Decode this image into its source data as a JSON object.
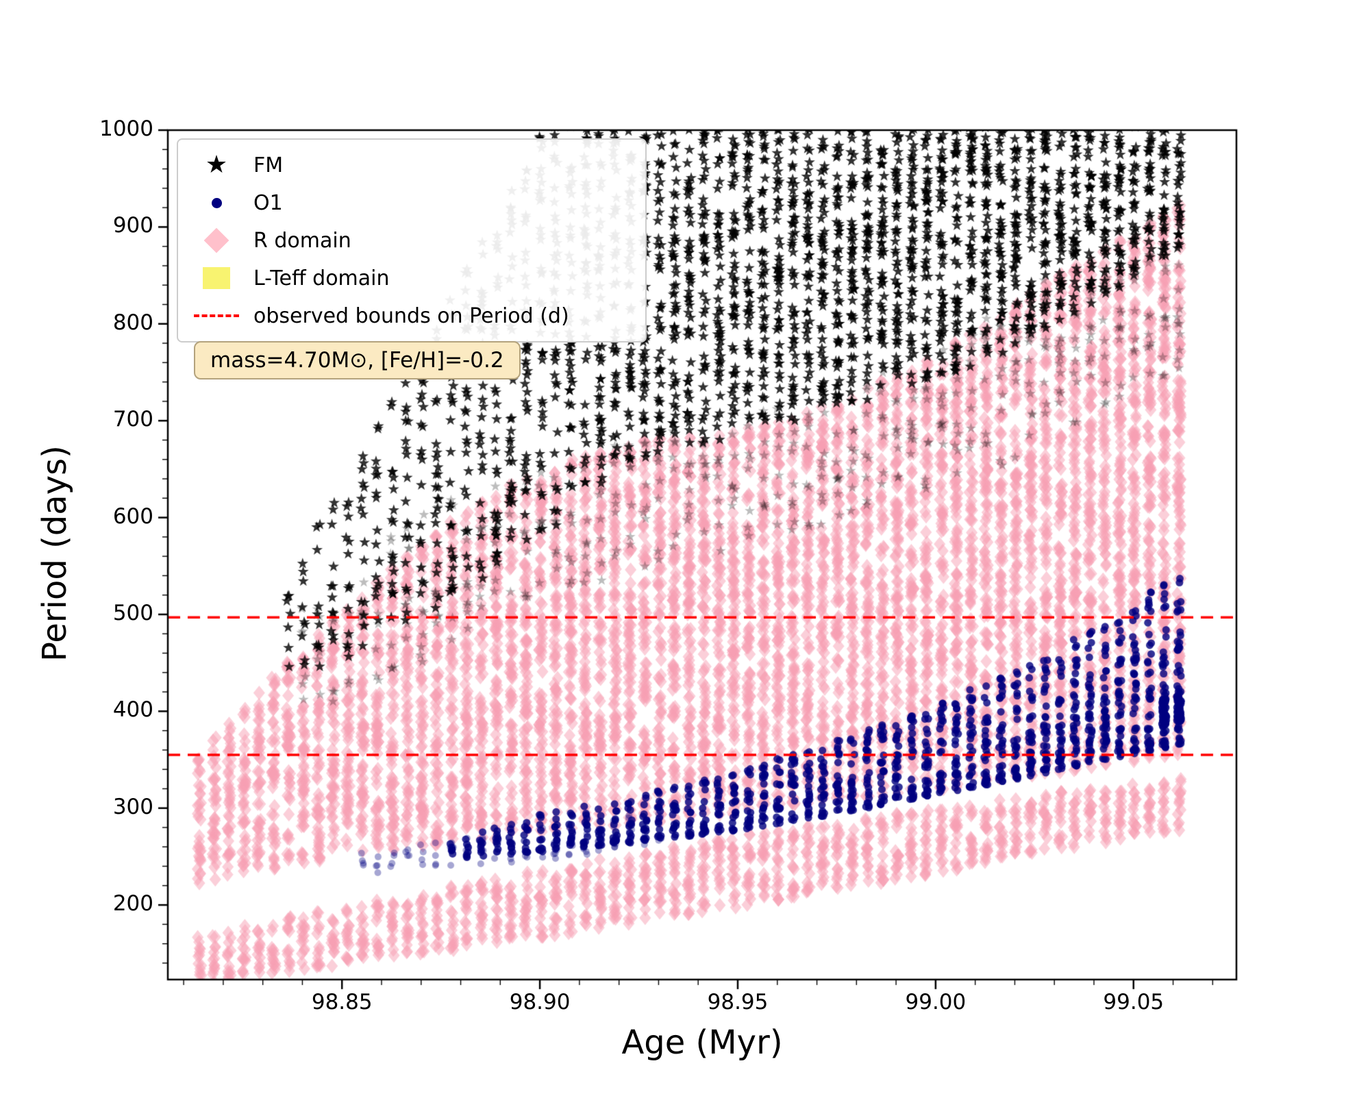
{
  "chart_data": {
    "type": "scatter",
    "title": "",
    "xlabel": "Age (Myr)",
    "ylabel": "Period (days)",
    "xlim": [
      98.806,
      99.076
    ],
    "ylim": [
      123,
      1000
    ],
    "xticks": [
      {
        "v": 98.85,
        "label": "98.85"
      },
      {
        "v": 98.9,
        "label": "98.90"
      },
      {
        "v": 98.95,
        "label": "98.95"
      },
      {
        "v": 99.0,
        "label": "99.00"
      },
      {
        "v": 99.05,
        "label": "99.05"
      }
    ],
    "yticks": [
      {
        "v": 200,
        "label": "200"
      },
      {
        "v": 300,
        "label": "300"
      },
      {
        "v": 400,
        "label": "400"
      },
      {
        "v": 500,
        "label": "500"
      },
      {
        "v": 600,
        "label": "600"
      },
      {
        "v": 700,
        "label": "700"
      },
      {
        "v": 800,
        "label": "800"
      },
      {
        "v": 900,
        "label": "900"
      },
      {
        "v": 1000,
        "label": "1000"
      }
    ],
    "x_minor_step": 0.01,
    "y_minor_step": 20,
    "grid": false,
    "column_step": 0.00375,
    "column_jitter": 0.0005,
    "x_start": 98.814,
    "x_end": 99.0645,
    "hlines": [
      {
        "y": 497,
        "color": "#ff0000",
        "style": "dashed",
        "width": 3.5
      },
      {
        "y": 355,
        "color": "#ff0000",
        "style": "dashed",
        "width": 3.5
      }
    ],
    "annotation": {
      "text": "mass=4.70M⊙, [Fe/H]=-0.2",
      "facecolor": "#fbeac2",
      "edgecolor": "#b3a27c"
    },
    "legend": {
      "position": "upper-left",
      "entries": [
        {
          "label": "FM",
          "marker": "star",
          "color": "#000000"
        },
        {
          "label": "O1",
          "marker": "circle",
          "color": "#000080"
        },
        {
          "label": "R domain",
          "marker": "diamond",
          "color": "#ffc0cb"
        },
        {
          "label": "L-Teff domain",
          "marker": "square",
          "color": "#f8f370"
        },
        {
          "label": "observed bounds on Period (d)",
          "marker": "dashed-line",
          "color": "#ff0000"
        }
      ]
    },
    "series": [
      {
        "name": "R domain",
        "marker": "diamond",
        "color": "#f79fb4",
        "components": [
          {
            "alpha": 0.5,
            "size": 10,
            "bias": 1,
            "nodes": [
              [
                98.814,
                222,
                358,
                26
              ],
              [
                98.83,
                235,
                425,
                26
              ],
              [
                98.85,
                250,
                505,
                26
              ],
              [
                98.875,
                262,
                590,
                26
              ],
              [
                98.9,
                272,
                652,
                26
              ],
              [
                98.925,
                283,
                680,
                26
              ],
              [
                98.95,
                293,
                690,
                26
              ],
              [
                98.975,
                306,
                718,
                26
              ],
              [
                99.0,
                318,
                768,
                26
              ],
              [
                99.03,
                336,
                848,
                26
              ],
              [
                99.0645,
                356,
                932,
                26
              ]
            ]
          },
          {
            "alpha": 0.5,
            "size": 10,
            "bias": 1,
            "nodes": [
              [
                98.814,
                118,
                170,
                26
              ],
              [
                98.85,
                138,
                198,
                26
              ],
              [
                98.9,
                166,
                236,
                26
              ],
              [
                98.95,
                198,
                272,
                26
              ],
              [
                99.0,
                232,
                300,
                26
              ],
              [
                99.03,
                256,
                316,
                26
              ],
              [
                99.0645,
                278,
                332,
                26
              ]
            ]
          }
        ]
      },
      {
        "name": "FM",
        "marker": "star",
        "color": "#000000",
        "components": [
          {
            "alpha": 0.26,
            "size": 8,
            "bias": 1,
            "nodes": [
              [
                98.84,
                395,
                505,
                5
              ],
              [
                98.87,
                450,
                608,
                5
              ],
              [
                98.9,
                520,
                662,
                5
              ],
              [
                98.94,
                558,
                695,
                5
              ],
              [
                98.98,
                600,
                735,
                6
              ],
              [
                99.02,
                658,
                825,
                6
              ],
              [
                99.05,
                728,
                905,
                6
              ],
              [
                99.0645,
                758,
                935,
                6
              ]
            ]
          },
          {
            "alpha": 0.8,
            "size": 8.5,
            "bias": 1,
            "nodes": [
              [
                98.835,
                430,
                545,
                6
              ],
              [
                98.86,
                468,
                705,
                7
              ],
              [
                98.88,
                520,
                845,
                8
              ],
              [
                98.9,
                575,
                1010,
                9
              ],
              [
                98.92,
                652,
                1012,
                13
              ],
              [
                98.95,
                685,
                1015,
                16
              ],
              [
                98.98,
                715,
                1015,
                18
              ],
              [
                99.01,
                755,
                1015,
                19
              ],
              [
                99.04,
                820,
                1015,
                20
              ],
              [
                99.0645,
                885,
                1015,
                20
              ]
            ]
          }
        ]
      },
      {
        "name": "O1",
        "marker": "circle",
        "color": "#000080",
        "components": [
          {
            "alpha": 0.35,
            "size": 5,
            "bias": 1,
            "nodes": [
              [
                98.852,
                230,
                252,
                16
              ],
              [
                98.9,
                246,
                280,
                16
              ],
              [
                98.932,
                260,
                298,
                16
              ]
            ]
          },
          {
            "alpha": 0.8,
            "size": 5.5,
            "bias": 1.45,
            "nodes": [
              [
                98.875,
                247,
                263,
                34
              ],
              [
                98.9,
                255,
                293,
                34
              ],
              [
                98.925,
                265,
                313,
                34
              ],
              [
                98.95,
                277,
                339,
                34
              ],
              [
                98.975,
                294,
                370,
                32
              ],
              [
                99.0,
                314,
                406,
                30
              ],
              [
                99.025,
                334,
                452,
                28
              ],
              [
                99.045,
                352,
                502,
                26
              ],
              [
                99.0645,
                368,
                548,
                24
              ]
            ]
          },
          {
            "alpha": 0.85,
            "size": 6,
            "bias": 1,
            "nodes": [
              [
                99.057,
                386,
                414,
                130
              ],
              [
                99.0645,
                390,
                416,
                130
              ]
            ]
          }
        ]
      }
    ]
  }
}
